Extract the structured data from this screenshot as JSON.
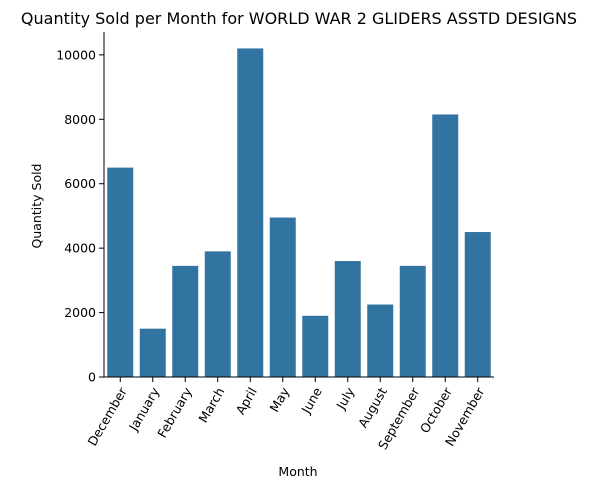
{
  "colors": {
    "bar": "#3274a1",
    "axis": "#000000",
    "background": "#ffffff"
  },
  "chart_data": {
    "type": "bar",
    "title": "Quantity Sold per Month for WORLD WAR 2 GLIDERS ASSTD DESIGNS",
    "xlabel": "Month",
    "ylabel": "Quantity Sold",
    "categories": [
      "December",
      "January",
      "February",
      "March",
      "April",
      "May",
      "June",
      "July",
      "August",
      "September",
      "October",
      "November"
    ],
    "values": [
      6500,
      1500,
      3450,
      3900,
      10200,
      4950,
      1900,
      3600,
      2250,
      3450,
      8150,
      4500
    ],
    "ylim": [
      0,
      10710
    ],
    "yticks": [
      0,
      2000,
      4000,
      6000,
      8000,
      10000
    ],
    "ytick_labels": [
      "0",
      "2000",
      "4000",
      "6000",
      "8000",
      "10000"
    ],
    "xtick_rotation_degrees": 60,
    "grid": false,
    "legend": "none"
  }
}
